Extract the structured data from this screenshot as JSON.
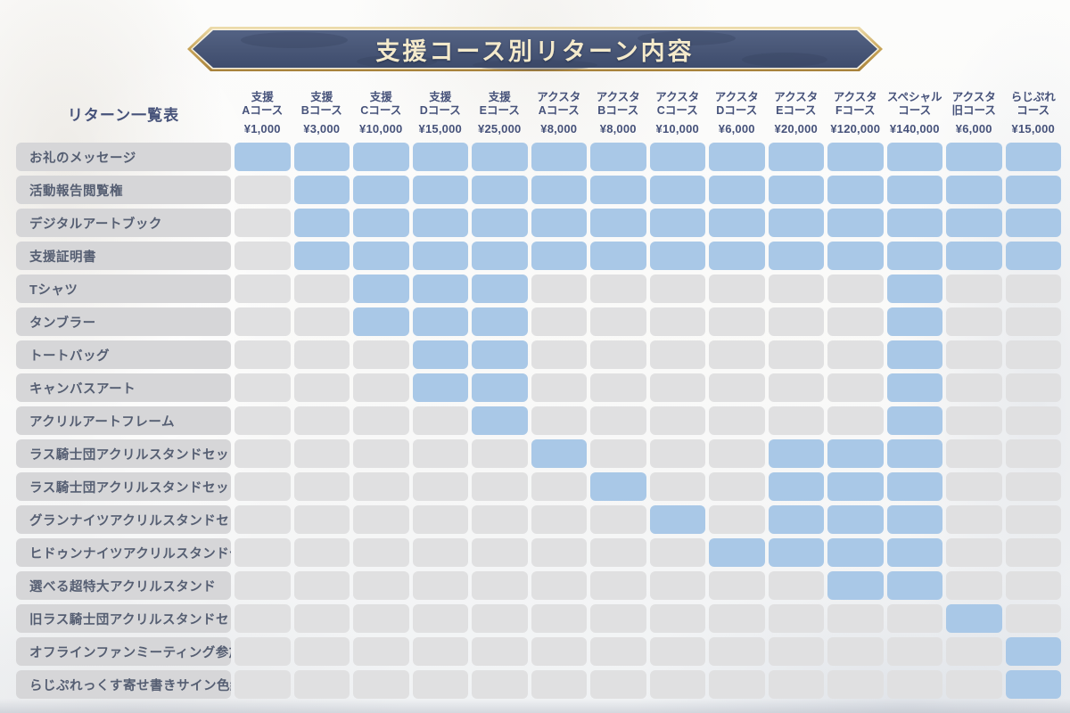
{
  "banner": {
    "title": "支援コース別リターン内容"
  },
  "chart_data": {
    "type": "table",
    "title": "支援コース別リターン内容",
    "corner_label": "リターン一覧表",
    "value_encoding": {
      "1": "included (blue cell)",
      "0": "not included (gray cell)"
    },
    "columns": [
      {
        "name": [
          "支援",
          "Aコース"
        ],
        "price": "¥1,000"
      },
      {
        "name": [
          "支援",
          "Bコース"
        ],
        "price": "¥3,000"
      },
      {
        "name": [
          "支援",
          "Cコース"
        ],
        "price": "¥10,000"
      },
      {
        "name": [
          "支援",
          "Dコース"
        ],
        "price": "¥15,000"
      },
      {
        "name": [
          "支援",
          "Eコース"
        ],
        "price": "¥25,000"
      },
      {
        "name": [
          "アクスタ",
          "Aコース"
        ],
        "price": "¥8,000"
      },
      {
        "name": [
          "アクスタ",
          "Bコース"
        ],
        "price": "¥8,000"
      },
      {
        "name": [
          "アクスタ",
          "Cコース"
        ],
        "price": "¥10,000"
      },
      {
        "name": [
          "アクスタ",
          "Dコース"
        ],
        "price": "¥6,000"
      },
      {
        "name": [
          "アクスタ",
          "Eコース"
        ],
        "price": "¥20,000"
      },
      {
        "name": [
          "アクスタ",
          "Fコース"
        ],
        "price": "¥120,000"
      },
      {
        "name": [
          "スペシャル",
          "コース"
        ],
        "price": "¥140,000"
      },
      {
        "name": [
          "アクスタ",
          "旧コース"
        ],
        "price": "¥6,000"
      },
      {
        "name": [
          "らじぷれ",
          "コース"
        ],
        "price": "¥15,000"
      }
    ],
    "rows": [
      {
        "label": "お礼のメッセージ",
        "included": [
          1,
          1,
          1,
          1,
          1,
          1,
          1,
          1,
          1,
          1,
          1,
          1,
          1,
          1
        ]
      },
      {
        "label": "活動報告閲覧権",
        "included": [
          0,
          1,
          1,
          1,
          1,
          1,
          1,
          1,
          1,
          1,
          1,
          1,
          1,
          1
        ]
      },
      {
        "label": "デジタルアートブック",
        "included": [
          0,
          1,
          1,
          1,
          1,
          1,
          1,
          1,
          1,
          1,
          1,
          1,
          1,
          1
        ]
      },
      {
        "label": "支援証明書",
        "included": [
          0,
          1,
          1,
          1,
          1,
          1,
          1,
          1,
          1,
          1,
          1,
          1,
          1,
          1
        ]
      },
      {
        "label": "Tシャツ",
        "included": [
          0,
          0,
          1,
          1,
          1,
          0,
          0,
          0,
          0,
          0,
          0,
          1,
          0,
          0
        ]
      },
      {
        "label": "タンブラー",
        "included": [
          0,
          0,
          1,
          1,
          1,
          0,
          0,
          0,
          0,
          0,
          0,
          1,
          0,
          0
        ]
      },
      {
        "label": "トートバッグ",
        "included": [
          0,
          0,
          0,
          1,
          1,
          0,
          0,
          0,
          0,
          0,
          0,
          1,
          0,
          0
        ]
      },
      {
        "label": "キャンバスアート",
        "included": [
          0,
          0,
          0,
          1,
          1,
          0,
          0,
          0,
          0,
          0,
          0,
          1,
          0,
          0
        ]
      },
      {
        "label": "アクリルアートフレーム",
        "included": [
          0,
          0,
          0,
          0,
          1,
          0,
          0,
          0,
          0,
          0,
          0,
          1,
          0,
          0
        ]
      },
      {
        "label": "ラス騎士団アクリルスタンドセットA",
        "included": [
          0,
          0,
          0,
          0,
          0,
          1,
          0,
          0,
          0,
          1,
          1,
          1,
          0,
          0
        ]
      },
      {
        "label": "ラス騎士団アクリルスタンドセットB",
        "included": [
          0,
          0,
          0,
          0,
          0,
          0,
          1,
          0,
          0,
          1,
          1,
          1,
          0,
          0
        ]
      },
      {
        "label": "グランナイツアクリルスタンドセット",
        "included": [
          0,
          0,
          0,
          0,
          0,
          0,
          0,
          1,
          0,
          1,
          1,
          1,
          0,
          0
        ]
      },
      {
        "label": "ヒドゥンナイツアクリルスタンドセット",
        "included": [
          0,
          0,
          0,
          0,
          0,
          0,
          0,
          0,
          1,
          1,
          1,
          1,
          0,
          0
        ]
      },
      {
        "label": "選べる超特大アクリルスタンド",
        "included": [
          0,
          0,
          0,
          0,
          0,
          0,
          0,
          0,
          0,
          0,
          1,
          1,
          0,
          0
        ]
      },
      {
        "label": "旧ラス騎士団アクリルスタンドセット",
        "included": [
          0,
          0,
          0,
          0,
          0,
          0,
          0,
          0,
          0,
          0,
          0,
          0,
          1,
          0
        ]
      },
      {
        "label": "オフラインファンミーティング参加券",
        "included": [
          0,
          0,
          0,
          0,
          0,
          0,
          0,
          0,
          0,
          0,
          0,
          0,
          0,
          1
        ]
      },
      {
        "label": "らじぷれっくす寄せ書きサイン色紙",
        "included": [
          0,
          0,
          0,
          0,
          0,
          0,
          0,
          0,
          0,
          0,
          0,
          0,
          0,
          1
        ]
      }
    ]
  },
  "colors": {
    "cell_included": "#a9c8e7",
    "cell_not_included": "#e0e0e1",
    "row_label_bg": "#d6d6d8",
    "row_label_text": "#555e72",
    "header_text": "#46527a",
    "banner_navy": "#4a5878",
    "banner_navy_dark": "#3e4c6d",
    "banner_gold": "#c3a053",
    "banner_gold_light": "#e8d29a",
    "banner_text": "#f4eacb"
  }
}
